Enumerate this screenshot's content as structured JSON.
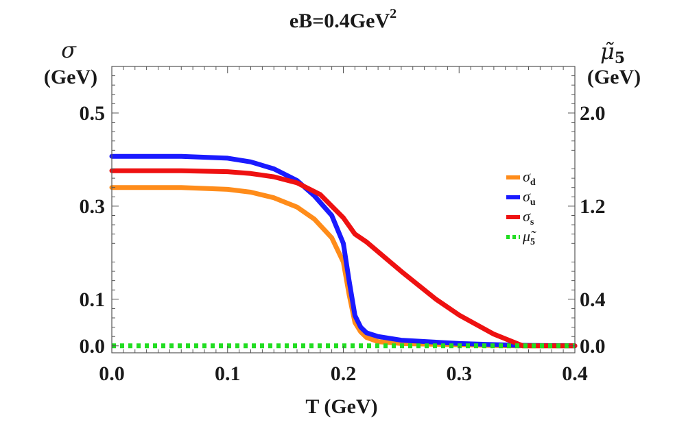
{
  "chart_data": {
    "type": "line",
    "title_main": "eB=0.4GeV",
    "title_sup": "2",
    "xlabel": "T (GeV)",
    "ylabel_symbol": "σ",
    "ylabel_unit": "(GeV)",
    "y2label_symbol": "μ̃",
    "y2label_sub": "5",
    "y2label_unit": "(GeV)",
    "xlim": [
      0.0,
      0.4
    ],
    "ylim": [
      -0.015,
      0.6
    ],
    "y2lim": [
      -0.06,
      2.4
    ],
    "xticks": [
      "0.0",
      "0.1",
      "0.2",
      "0.3",
      "0.4"
    ],
    "yticks": [
      "0.0",
      "0.1",
      "0.3",
      "0.5"
    ],
    "y2ticks": [
      "0.0",
      "0.4",
      "1.2",
      "2.0"
    ],
    "legend_position": "right",
    "series": [
      {
        "name": "σ_d",
        "symbol": "σ",
        "sub": "d",
        "color": "#ff8c1a",
        "dash": "solid",
        "x": [
          0.0,
          0.06,
          0.1,
          0.12,
          0.14,
          0.16,
          0.175,
          0.19,
          0.2,
          0.205,
          0.21,
          0.215,
          0.22,
          0.23,
          0.25,
          0.3,
          0.35,
          0.4
        ],
        "y": [
          0.34,
          0.34,
          0.336,
          0.33,
          0.318,
          0.298,
          0.272,
          0.232,
          0.18,
          0.11,
          0.05,
          0.03,
          0.018,
          0.009,
          0.005,
          0.002,
          0.0,
          0.0
        ]
      },
      {
        "name": "σ_u",
        "symbol": "σ",
        "sub": "u",
        "color": "#1a1aff",
        "dash": "solid",
        "x": [
          0.0,
          0.06,
          0.1,
          0.12,
          0.14,
          0.16,
          0.175,
          0.19,
          0.2,
          0.205,
          0.21,
          0.215,
          0.22,
          0.23,
          0.25,
          0.3,
          0.35,
          0.4
        ],
        "y": [
          0.407,
          0.407,
          0.403,
          0.395,
          0.38,
          0.355,
          0.322,
          0.28,
          0.22,
          0.14,
          0.065,
          0.04,
          0.028,
          0.02,
          0.012,
          0.005,
          0.001,
          0.0
        ]
      },
      {
        "name": "σ_s",
        "symbol": "σ",
        "sub": "s",
        "color": "#ee1111",
        "dash": "solid",
        "x": [
          0.0,
          0.06,
          0.1,
          0.12,
          0.14,
          0.16,
          0.18,
          0.2,
          0.21,
          0.22,
          0.25,
          0.28,
          0.3,
          0.33,
          0.355,
          0.37,
          0.4
        ],
        "y": [
          0.376,
          0.376,
          0.374,
          0.37,
          0.363,
          0.35,
          0.325,
          0.275,
          0.24,
          0.223,
          0.16,
          0.1,
          0.066,
          0.025,
          0.0,
          0.0,
          0.0
        ]
      },
      {
        "name": "μ̃_5",
        "symbol": "μ̃",
        "sub": "5",
        "color": "#22dd22",
        "dash": "dotted",
        "axis": "right",
        "x": [
          0.0,
          0.4
        ],
        "y": [
          0.0,
          0.0
        ]
      }
    ]
  }
}
